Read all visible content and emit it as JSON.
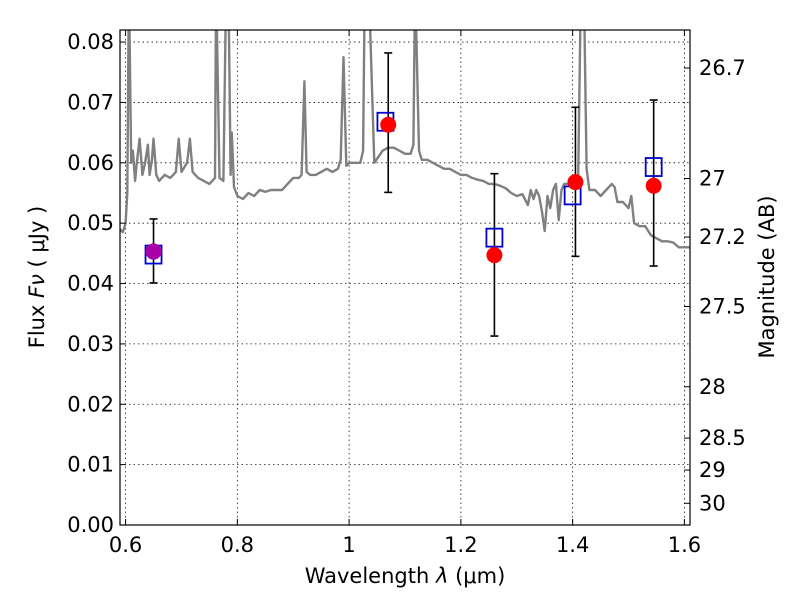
{
  "chart_data": {
    "type": "scatter",
    "xlabel_prefix": "Wavelength  ",
    "xlabel_symbol": "λ",
    "xlabel_unit": " (μm)",
    "ylabel_prefix": "Flux  ",
    "ylabel_symbol": "Fν",
    "ylabel_unit": "  ( μJy )",
    "ylabel_right": "Magnitude (AB)",
    "xlim": [
      0.59,
      1.61
    ],
    "ylim": [
      0.0,
      0.082
    ],
    "grid": true,
    "x_ticks": [
      0.6,
      0.8,
      1.0,
      1.2,
      1.4,
      1.6
    ],
    "x_tick_labels": [
      "0.6",
      "0.8",
      "1",
      "1.2",
      "1.4",
      "1.6"
    ],
    "y_ticks": [
      0.0,
      0.01,
      0.02,
      0.03,
      0.04,
      0.05,
      0.06,
      0.07,
      0.08
    ],
    "y_tick_labels": [
      "0.00",
      "0.01",
      "0.02",
      "0.03",
      "0.04",
      "0.05",
      "0.06",
      "0.07",
      "0.08"
    ],
    "right_ticks": [
      {
        "label": "26.7",
        "flux": 0.0757
      },
      {
        "label": "27",
        "flux": 0.0574
      },
      {
        "label": "27.2",
        "flux": 0.0477
      },
      {
        "label": "27.5",
        "flux": 0.0362
      },
      {
        "label": "28",
        "flux": 0.0229
      },
      {
        "label": "28.5",
        "flux": 0.0144
      },
      {
        "label": "29",
        "flux": 0.0091
      },
      {
        "label": "30",
        "flux": 0.0036
      }
    ],
    "series": [
      {
        "kind": "line",
        "color": "#808080",
        "points": [
          [
            0.59,
            0.049
          ],
          [
            0.595,
            0.0485
          ],
          [
            0.6,
            0.05
          ],
          [
            0.603,
            0.055
          ],
          [
            0.606,
            0.09
          ],
          [
            0.61,
            0.06
          ],
          [
            0.613,
            0.062
          ],
          [
            0.617,
            0.057
          ],
          [
            0.62,
            0.06
          ],
          [
            0.625,
            0.064
          ],
          [
            0.63,
            0.058
          ],
          [
            0.635,
            0.06
          ],
          [
            0.64,
            0.063
          ],
          [
            0.643,
            0.058
          ],
          [
            0.647,
            0.0605
          ],
          [
            0.65,
            0.064
          ],
          [
            0.655,
            0.058
          ],
          [
            0.66,
            0.057
          ],
          [
            0.67,
            0.058
          ],
          [
            0.68,
            0.0575
          ],
          [
            0.69,
            0.0585
          ],
          [
            0.695,
            0.064
          ],
          [
            0.7,
            0.0585
          ],
          [
            0.71,
            0.06
          ],
          [
            0.715,
            0.064
          ],
          [
            0.72,
            0.0585
          ],
          [
            0.73,
            0.0575
          ],
          [
            0.74,
            0.057
          ],
          [
            0.75,
            0.0565
          ],
          [
            0.76,
            0.0575
          ],
          [
            0.762,
            0.09
          ],
          [
            0.768,
            0.0575
          ],
          [
            0.775,
            0.057
          ],
          [
            0.78,
            0.09
          ],
          [
            0.784,
            0.09
          ],
          [
            0.788,
            0.058
          ],
          [
            0.79,
            0.065
          ],
          [
            0.794,
            0.056
          ],
          [
            0.8,
            0.0545
          ],
          [
            0.81,
            0.054
          ],
          [
            0.82,
            0.055
          ],
          [
            0.83,
            0.0545
          ],
          [
            0.84,
            0.0555
          ],
          [
            0.85,
            0.0552
          ],
          [
            0.86,
            0.0555
          ],
          [
            0.87,
            0.0555
          ],
          [
            0.88,
            0.0555
          ],
          [
            0.89,
            0.0565
          ],
          [
            0.9,
            0.0575
          ],
          [
            0.91,
            0.0575
          ],
          [
            0.915,
            0.058
          ],
          [
            0.92,
            0.0735
          ],
          [
            0.924,
            0.0585
          ],
          [
            0.93,
            0.058
          ],
          [
            0.94,
            0.058
          ],
          [
            0.95,
            0.0585
          ],
          [
            0.96,
            0.059
          ],
          [
            0.97,
            0.0585
          ],
          [
            0.98,
            0.059
          ],
          [
            0.985,
            0.0605
          ],
          [
            0.99,
            0.0775
          ],
          [
            0.995,
            0.0595
          ],
          [
            1.0,
            0.06
          ],
          [
            1.01,
            0.06
          ],
          [
            1.02,
            0.06
          ],
          [
            1.025,
            0.062
          ],
          [
            1.028,
            0.09
          ],
          [
            1.035,
            0.09
          ],
          [
            1.045,
            0.06
          ],
          [
            1.06,
            0.062
          ],
          [
            1.07,
            0.0625
          ],
          [
            1.08,
            0.0625
          ],
          [
            1.09,
            0.062
          ],
          [
            1.1,
            0.0615
          ],
          [
            1.11,
            0.0615
          ],
          [
            1.115,
            0.063
          ],
          [
            1.118,
            0.09
          ],
          [
            1.125,
            0.062
          ],
          [
            1.13,
            0.0605
          ],
          [
            1.14,
            0.0605
          ],
          [
            1.15,
            0.06
          ],
          [
            1.16,
            0.0595
          ],
          [
            1.17,
            0.059
          ],
          [
            1.18,
            0.059
          ],
          [
            1.19,
            0.0585
          ],
          [
            1.2,
            0.058
          ],
          [
            1.21,
            0.058
          ],
          [
            1.22,
            0.0575
          ],
          [
            1.23,
            0.0572
          ],
          [
            1.24,
            0.057
          ],
          [
            1.25,
            0.0565
          ],
          [
            1.26,
            0.0565
          ],
          [
            1.27,
            0.0562
          ],
          [
            1.28,
            0.0558
          ],
          [
            1.29,
            0.055
          ],
          [
            1.3,
            0.0545
          ],
          [
            1.31,
            0.0548
          ],
          [
            1.32,
            0.053
          ],
          [
            1.325,
            0.0555
          ],
          [
            1.33,
            0.054
          ],
          [
            1.335,
            0.0555
          ],
          [
            1.34,
            0.0545
          ],
          [
            1.345,
            0.052
          ],
          [
            1.35,
            0.0487
          ],
          [
            1.355,
            0.0545
          ],
          [
            1.36,
            0.0525
          ],
          [
            1.365,
            0.0555
          ],
          [
            1.37,
            0.0565
          ],
          [
            1.375,
            0.0505
          ],
          [
            1.38,
            0.0555
          ],
          [
            1.385,
            0.0565
          ],
          [
            1.39,
            0.0565
          ],
          [
            1.4,
            0.057
          ],
          [
            1.41,
            0.058
          ],
          [
            1.415,
            0.09
          ],
          [
            1.42,
            0.09
          ],
          [
            1.425,
            0.059
          ],
          [
            1.43,
            0.0555
          ],
          [
            1.44,
            0.0555
          ],
          [
            1.45,
            0.0545
          ],
          [
            1.46,
            0.0555
          ],
          [
            1.47,
            0.0565
          ],
          [
            1.475,
            0.056
          ],
          [
            1.48,
            0.0535
          ],
          [
            1.49,
            0.0535
          ],
          [
            1.5,
            0.0525
          ],
          [
            1.505,
            0.0545
          ],
          [
            1.51,
            0.05
          ],
          [
            1.52,
            0.0495
          ],
          [
            1.53,
            0.0495
          ],
          [
            1.54,
            0.048
          ],
          [
            1.55,
            0.0475
          ],
          [
            1.56,
            0.047
          ],
          [
            1.57,
            0.047
          ],
          [
            1.58,
            0.0468
          ],
          [
            1.59,
            0.046
          ],
          [
            1.61,
            0.046
          ]
        ]
      },
      {
        "kind": "errorbar",
        "color": "#000000",
        "points": [
          {
            "x": 0.65,
            "y": 0.0453,
            "ylow": 0.0401,
            "yhigh": 0.0507
          },
          {
            "x": 1.07,
            "y": 0.0667,
            "ylow": 0.0551,
            "yhigh": 0.0782
          },
          {
            "x": 1.26,
            "y": 0.0448,
            "ylow": 0.0313,
            "yhigh": 0.0582
          },
          {
            "x": 1.405,
            "y": 0.057,
            "ylow": 0.0445,
            "yhigh": 0.0692
          },
          {
            "x": 1.545,
            "y": 0.0565,
            "ylow": 0.0429,
            "yhigh": 0.0704
          }
        ]
      },
      {
        "kind": "square",
        "color": "#0000cc",
        "points": [
          [
            0.65,
            0.0448
          ],
          [
            1.065,
            0.0668
          ],
          [
            1.26,
            0.0476
          ],
          [
            1.4,
            0.0546
          ],
          [
            1.545,
            0.0593
          ]
        ]
      },
      {
        "kind": "circle",
        "color": "#ff0000",
        "points": [
          [
            0.65,
            0.0453
          ],
          [
            1.07,
            0.0663
          ],
          [
            1.26,
            0.0447
          ],
          [
            1.405,
            0.0568
          ],
          [
            1.545,
            0.0562
          ]
        ]
      },
      {
        "kind": "circle",
        "color": "#aa00aa",
        "points": [
          [
            0.65,
            0.0453
          ]
        ]
      }
    ]
  }
}
